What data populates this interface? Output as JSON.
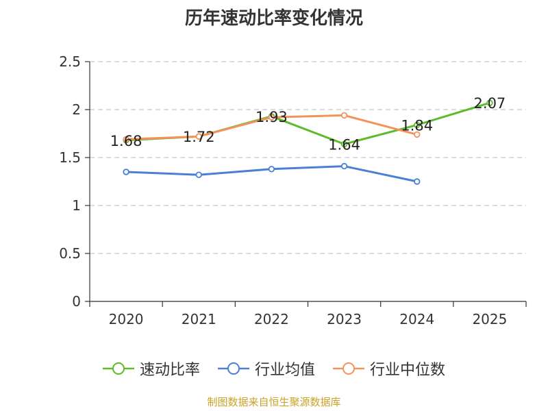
{
  "chart_data": {
    "type": "line",
    "title": "历年速动比率变化情况",
    "categories": [
      "2020",
      "2021",
      "2022",
      "2023",
      "2024",
      "2025"
    ],
    "ylim": [
      0,
      2.5
    ],
    "yticks": [
      "0",
      "0.5",
      "1",
      "1.5",
      "2",
      "2.5"
    ],
    "grid": true,
    "legend_position": "bottom",
    "series": [
      {
        "name": "速动比率",
        "color": "#5dbb2a",
        "values": [
          1.68,
          1.72,
          1.93,
          1.64,
          1.84,
          2.07
        ],
        "labels": [
          "1.68",
          "1.72",
          "1.93",
          "1.64",
          "1.84",
          "2.07"
        ]
      },
      {
        "name": "行业均值",
        "color": "#4a7fd6",
        "values": [
          1.35,
          1.32,
          1.38,
          1.41,
          1.25,
          null
        ]
      },
      {
        "name": "行业中位数",
        "color": "#f5925a",
        "values": [
          1.69,
          1.72,
          1.92,
          1.94,
          1.74,
          null
        ]
      }
    ]
  },
  "source_text": "制图数据来自恒生聚源数据库"
}
